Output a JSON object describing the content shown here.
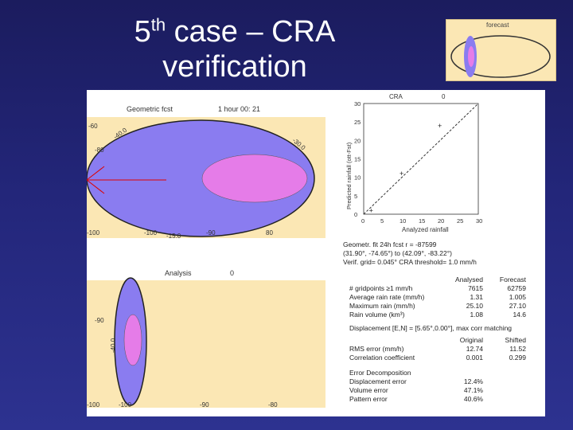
{
  "slide": {
    "title_line1_pre": "5",
    "title_sup": "th",
    "title_line1_post": " case – CRA",
    "title_line2": "verification"
  },
  "thumbnail": {
    "label": "forecast"
  },
  "geometric_panel": {
    "title": "Geometric fcst",
    "subtitle": "1 hour 00: 21",
    "lat_labels": [
      "-60",
      "-80",
      "-100"
    ],
    "lon_labels": [
      "-100",
      "-90",
      "80"
    ],
    "arc_labels": [
      "-40.0",
      "-30.0",
      "-15.0",
      "-40.0"
    ]
  },
  "analysis_panel": {
    "title": "Analysis",
    "subtitle": "0",
    "lat_labels": [
      "-90",
      "-100"
    ],
    "lon_labels": [
      "-100",
      "-90",
      "-80"
    ],
    "arc_label": "-40.0"
  },
  "scatter": {
    "title": "CRA",
    "title_num": "0",
    "ylabel": "Predicted rainfall (ott-Fst)",
    "xlabel": "Analyzed rainfall",
    "ticks": [
      "0",
      "5",
      "10",
      "15",
      "20",
      "25",
      "30"
    ],
    "chart_data": {
      "type": "scatter",
      "x": [
        2,
        10,
        20
      ],
      "y": [
        1,
        11,
        24
      ],
      "xlim": [
        0,
        30
      ],
      "ylim": [
        0,
        30
      ]
    }
  },
  "info": {
    "line1": "Geometr. fit  24h  fcst          r = -87599",
    "line2": "(31.90°, -74.65°) to (42.09°, -83.22°)",
    "line3": "Verif. grid= 0.045°   CRA threshold= 1.0 mm/h"
  },
  "stats_table": {
    "headers": [
      "",
      "Analysed",
      "Forecast"
    ],
    "rows": [
      [
        "# gridpoints ≥1 mm/h",
        "7615",
        "62759"
      ],
      [
        "Average rain rate (mm/h)",
        "1.31",
        "1.005"
      ],
      [
        "Maximum rain (mm/h)",
        "25.10",
        "27.10"
      ],
      [
        "Rain volume (km³)",
        "1.08",
        "14.6"
      ]
    ],
    "displacement": "Displacement [E,N] = [5.65°,0.00°], max corr matching",
    "headers2": [
      "",
      "Original",
      "Shifted"
    ],
    "rows2": [
      [
        "RMS error (mm/h)",
        "12.74",
        "11.52"
      ],
      [
        "Correlation coefficient",
        "0.001",
        "0.299"
      ]
    ],
    "decomp_title": "Error Decomposition",
    "rows3": [
      [
        "Displacement error",
        "12.4%"
      ],
      [
        "Volume error",
        "47.1%"
      ],
      [
        "Pattern error",
        "40.6%"
      ]
    ]
  },
  "colors": {
    "background": "#23267a",
    "map_fill": "#fbe7b4",
    "forecast_ellipse": "#8a7cf0",
    "analysis_ellipse": "#e57ce8"
  }
}
